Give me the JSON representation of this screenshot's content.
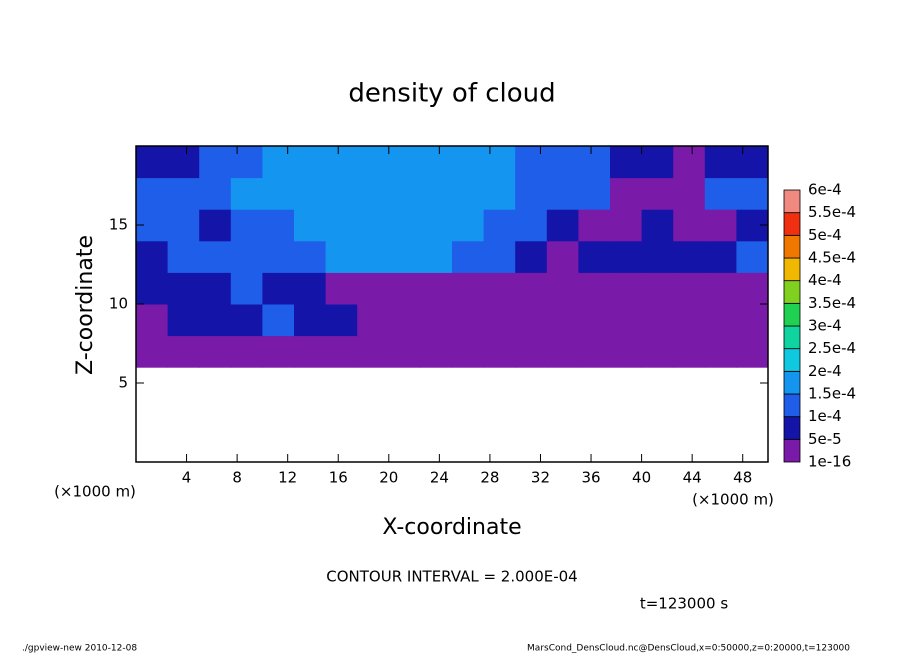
{
  "chart_data": {
    "type": "contour",
    "title": "density of cloud",
    "xlabel": "X-coordinate",
    "ylabel": "Z-coordinate",
    "xunit": "(×1000 m)",
    "yunit": "(×1000 m)",
    "note": "CONTOUR INTERVAL = 2.000E-04",
    "time": "t=123000 s",
    "footer_left": "./gpview-new  2010-12-08",
    "footer_right": "MarsCond_DensCloud.nc@DensCloud,x=0:50000,z=0:20000,t=123000",
    "xlim": [
      0,
      50
    ],
    "ylim": [
      0,
      20
    ],
    "xticks": [
      4,
      8,
      12,
      16,
      20,
      24,
      28,
      32,
      36,
      40,
      44,
      48
    ],
    "yticks": [
      5,
      10,
      15
    ],
    "xbins": [
      0,
      2.5,
      5,
      7.5,
      10,
      12.5,
      15,
      17.5,
      20,
      22.5,
      25,
      27.5,
      30,
      32.5,
      35,
      37.5,
      40,
      42.5,
      45,
      47.5,
      50
    ],
    "ybins": [
      0,
      2,
      4,
      6,
      8,
      10,
      12,
      14,
      16,
      18,
      20
    ],
    "z": [
      [
        null,
        null,
        null,
        null,
        null,
        null,
        null,
        null,
        null,
        null,
        null,
        null,
        null,
        null,
        null,
        null,
        null,
        null,
        null,
        null
      ],
      [
        null,
        null,
        null,
        null,
        null,
        null,
        null,
        null,
        null,
        null,
        null,
        null,
        null,
        null,
        null,
        null,
        null,
        null,
        null,
        null
      ],
      [
        null,
        null,
        null,
        null,
        null,
        null,
        null,
        null,
        null,
        null,
        null,
        null,
        null,
        null,
        null,
        null,
        null,
        null,
        null,
        null
      ],
      [
        2e-05,
        2e-05,
        2e-05,
        2e-05,
        2e-05,
        2e-05,
        2e-05,
        2e-05,
        2e-05,
        2e-05,
        2e-05,
        2e-05,
        2e-05,
        2e-05,
        2e-05,
        2e-05,
        2e-05,
        2e-05,
        2e-05,
        2e-05
      ],
      [
        2e-05,
        7e-05,
        7e-05,
        7e-05,
        0.00012,
        7e-05,
        7e-05,
        2e-05,
        2e-05,
        2e-05,
        2e-05,
        2e-05,
        2e-05,
        2e-05,
        2e-05,
        2e-05,
        2e-05,
        2e-05,
        2e-05,
        2e-05
      ],
      [
        7e-05,
        7e-05,
        7e-05,
        0.00012,
        7e-05,
        7e-05,
        2e-05,
        2e-05,
        2e-05,
        2e-05,
        2e-05,
        2e-05,
        2e-05,
        2e-05,
        2e-05,
        2e-05,
        2e-05,
        2e-05,
        2e-05,
        2e-05
      ],
      [
        7e-05,
        0.00012,
        0.00012,
        0.00012,
        0.00012,
        0.00012,
        0.00017,
        0.00017,
        0.00017,
        0.00017,
        0.00012,
        0.00012,
        7e-05,
        2e-05,
        7e-05,
        7e-05,
        7e-05,
        7e-05,
        7e-05,
        0.00012
      ],
      [
        0.00012,
        0.00012,
        7e-05,
        0.00012,
        0.00012,
        0.00017,
        0.00017,
        0.00017,
        0.00017,
        0.00017,
        0.00017,
        0.00012,
        0.00012,
        7e-05,
        2e-05,
        2e-05,
        7e-05,
        2e-05,
        2e-05,
        7e-05
      ],
      [
        0.00012,
        0.00012,
        0.00012,
        0.00017,
        0.00017,
        0.00017,
        0.00017,
        0.00017,
        0.00017,
        0.00017,
        0.00017,
        0.00017,
        0.00012,
        0.00012,
        0.00012,
        2e-05,
        2e-05,
        2e-05,
        0.00012,
        0.00012
      ],
      [
        7e-05,
        7e-05,
        0.00012,
        0.00012,
        0.00017,
        0.00017,
        0.00017,
        0.00017,
        0.00017,
        0.00017,
        0.00017,
        0.00017,
        0.00012,
        0.00012,
        0.00012,
        7e-05,
        7e-05,
        2e-05,
        7e-05,
        7e-05
      ]
    ],
    "levels": [
      1e-16,
      {
        "value": 5e-05,
        "label": "5e-5"
      },
      {
        "value": 0.0001,
        "label": "1e-4"
      },
      {
        "value": 0.00015,
        "label": "1.5e-4"
      },
      {
        "value": 0.0002,
        "label": "2e-4"
      },
      {
        "value": 0.00025,
        "label": "2.5e-4"
      },
      {
        "value": 0.0003,
        "label": "3e-4"
      },
      {
        "value": 0.00035,
        "label": "3.5e-4"
      },
      {
        "value": 0.0004,
        "label": "4e-4"
      },
      {
        "value": 0.00045,
        "label": "4.5e-4"
      },
      {
        "value": 0.0005,
        "label": "5e-4"
      },
      {
        "value": 0.00055,
        "label": "5.5e-4"
      },
      {
        "value": 0.0006,
        "label": "6e-4"
      }
    ],
    "colors": [
      "#7a1aa8",
      "#1414a8",
      "#1e5ee8",
      "#1496f0",
      "#10c8e0",
      "#10d4a0",
      "#20d050",
      "#80d020",
      "#f0b800",
      "#f07800",
      "#f03010",
      "#f08a80"
    ]
  }
}
